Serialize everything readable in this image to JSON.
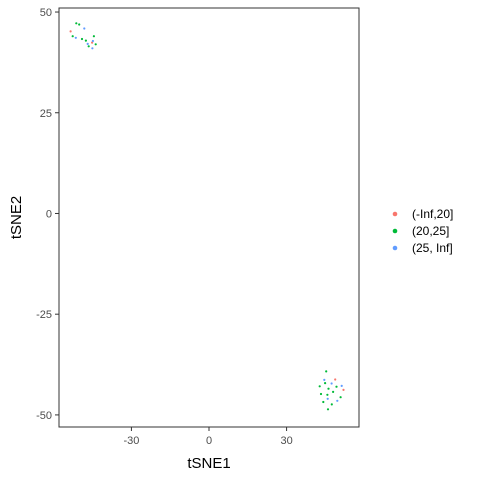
{
  "chart_data": {
    "type": "scatter",
    "xlabel": "tSNE1",
    "ylabel": "tSNE2",
    "xlim": [
      -58,
      58
    ],
    "ylim": [
      -53,
      51
    ],
    "x_ticks": [
      -30,
      0,
      30
    ],
    "y_ticks": [
      -50,
      -25,
      0,
      25,
      50
    ],
    "legend_position": "right",
    "grid": false,
    "series": [
      {
        "name": "(-Inf,20]",
        "color": "#F8766D",
        "points": [
          [
            -53.5,
            45.2
          ],
          [
            -45.2,
            42.4
          ],
          [
            48.8,
            -41.2
          ],
          [
            52.0,
            -43.8
          ]
        ]
      },
      {
        "name": "(20,25]",
        "color": "#00BA38",
        "points": [
          [
            -52.7,
            44.0
          ],
          [
            -51.3,
            47.2
          ],
          [
            -50.2,
            46.9
          ],
          [
            -49.1,
            43.3
          ],
          [
            -47.6,
            42.9
          ],
          [
            -46.5,
            41.5
          ],
          [
            -44.5,
            44.0
          ],
          [
            -43.8,
            42.0
          ],
          [
            45.3,
            -39.2
          ],
          [
            44.9,
            -42.1
          ],
          [
            46.2,
            -43.5
          ],
          [
            43.3,
            -44.8
          ],
          [
            45.8,
            -45.0
          ],
          [
            48.0,
            -44.3
          ],
          [
            50.9,
            -45.6
          ],
          [
            44.2,
            -46.8
          ],
          [
            47.5,
            -47.4
          ],
          [
            46.0,
            -48.6
          ],
          [
            49.3,
            -43.0
          ],
          [
            42.8,
            -42.9
          ]
        ]
      },
      {
        "name": "(25, Inf]",
        "color": "#619CFF",
        "points": [
          [
            -51.5,
            43.6
          ],
          [
            -48.2,
            45.9
          ],
          [
            -46.9,
            42.1
          ],
          [
            -45.1,
            41.0
          ],
          [
            -44.9,
            42.8
          ],
          [
            44.6,
            -41.3
          ],
          [
            47.4,
            -42.2
          ],
          [
            45.9,
            -46.0
          ],
          [
            51.3,
            -42.8
          ],
          [
            49.6,
            -46.5
          ]
        ]
      }
    ]
  }
}
